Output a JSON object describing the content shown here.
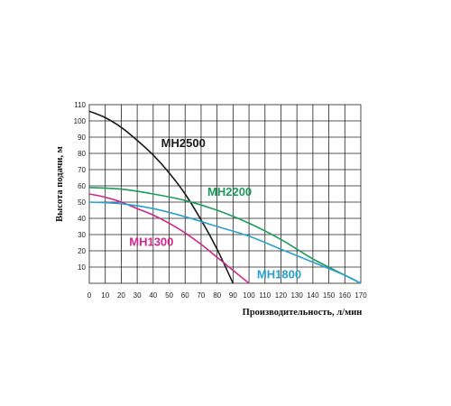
{
  "chart_data": {
    "type": "line",
    "xlabel": "Производительность, л/мин",
    "ylabel": "Высота подачи, м",
    "xlim": [
      0,
      170
    ],
    "ylim": [
      0,
      110
    ],
    "x_ticks": [
      "0",
      "10",
      "20",
      "30",
      "40",
      "50",
      "60",
      "70",
      "80",
      "90",
      "100",
      "110",
      "120",
      "130",
      "140",
      "150",
      "160",
      "170"
    ],
    "y_ticks": [
      "10",
      "20",
      "30",
      "40",
      "50",
      "60",
      "70",
      "80",
      "90",
      "100",
      "110"
    ],
    "grid": true,
    "series": [
      {
        "name": "MH2500",
        "color": "#1a1a1a",
        "x": [
          0,
          10,
          20,
          30,
          40,
          50,
          60,
          70,
          80,
          90
        ],
        "y": [
          106,
          102,
          96,
          88,
          79,
          68,
          55,
          39,
          21,
          0
        ],
        "label_at": [
          45,
          84
        ]
      },
      {
        "name": "MH2200",
        "color": "#1f9a5a",
        "x": [
          0,
          20,
          40,
          60,
          80,
          100,
          120,
          140,
          160,
          170
        ],
        "y": [
          59,
          58,
          55,
          51,
          45,
          37,
          27,
          15,
          5,
          0
        ],
        "label_at": [
          74,
          54
        ]
      },
      {
        "name": "MH1300",
        "color": "#d0268a",
        "x": [
          0,
          10,
          20,
          30,
          40,
          50,
          60,
          70,
          80,
          90,
          100
        ],
        "y": [
          55,
          53,
          50,
          46,
          42,
          37,
          31,
          24,
          16,
          8,
          0
        ],
        "label_at": [
          25,
          23
        ]
      },
      {
        "name": "MH1800",
        "color": "#2a9fd0",
        "x": [
          0,
          20,
          40,
          60,
          80,
          100,
          120,
          140,
          160,
          170
        ],
        "y": [
          50,
          49,
          46,
          41,
          35,
          29,
          21,
          13,
          5,
          0
        ],
        "label_at": [
          105,
          3
        ]
      }
    ]
  }
}
